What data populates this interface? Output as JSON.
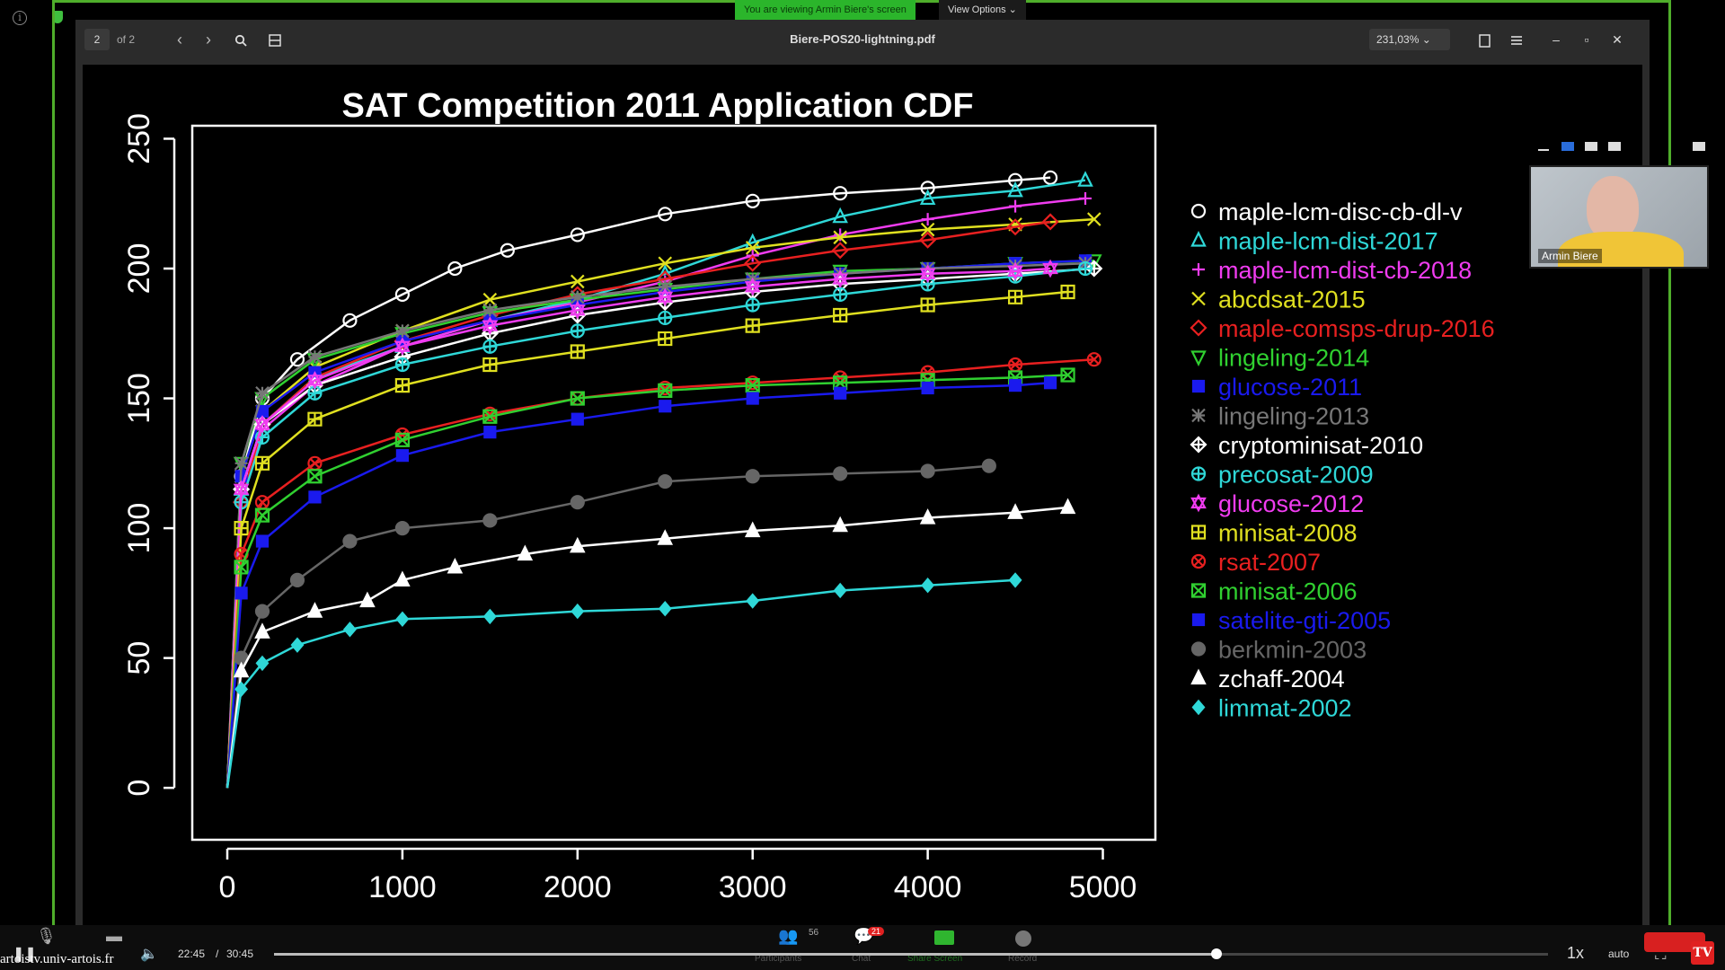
{
  "share": {
    "banner": "You are viewing Armin Biere's screen",
    "view_options": "View Options ⌄"
  },
  "viewer": {
    "page_current": "2",
    "page_total": "of 2",
    "document_title": "Biere-POS20-lightning.pdf",
    "zoom_level": "231,03% ⌄"
  },
  "webcam": {
    "participant_name": "Armin Biere"
  },
  "player": {
    "time_current": "22:45",
    "time_separator": "/",
    "time_total": "30:45",
    "speed": "1x",
    "quality": "auto",
    "site": "artoistv.univ-artois.fr",
    "participants_count": "56",
    "chat_badge": "21",
    "progress": 0.7398,
    "labels": {
      "participants": "Participants",
      "chat": "Chat",
      "share": "Share Screen",
      "record": "Record"
    }
  },
  "chart_data": {
    "type": "line",
    "title": "SAT Competition 2011 Application CDF",
    "xlabel": "",
    "ylabel": "",
    "xlim": [
      -200,
      5300
    ],
    "ylim": [
      -20,
      255
    ],
    "x_ticks": [
      0,
      1000,
      2000,
      3000,
      4000,
      5000
    ],
    "y_ticks": [
      0,
      50,
      100,
      150,
      200,
      250
    ],
    "grid": false,
    "legend_position": "right",
    "series": [
      {
        "name": "maple-lcm-disc-cb-dl-v",
        "color": "#ffffff",
        "marker": "circle-open",
        "points": [
          [
            0,
            0
          ],
          [
            80,
            120
          ],
          [
            200,
            150
          ],
          [
            400,
            165
          ],
          [
            700,
            180
          ],
          [
            1000,
            190
          ],
          [
            1300,
            200
          ],
          [
            1600,
            207
          ],
          [
            2000,
            213
          ],
          [
            2500,
            221
          ],
          [
            3000,
            226
          ],
          [
            3500,
            229
          ],
          [
            4000,
            231
          ],
          [
            4500,
            234
          ],
          [
            4700,
            235
          ]
        ]
      },
      {
        "name": "maple-lcm-dist-2017",
        "color": "#2fd8d8",
        "marker": "triangle-open",
        "points": [
          [
            0,
            0
          ],
          [
            80,
            115
          ],
          [
            200,
            140
          ],
          [
            500,
            158
          ],
          [
            1000,
            170
          ],
          [
            1500,
            180
          ],
          [
            2000,
            188
          ],
          [
            2500,
            198
          ],
          [
            3000,
            210
          ],
          [
            3500,
            220
          ],
          [
            4000,
            227
          ],
          [
            4500,
            230
          ],
          [
            4900,
            234
          ]
        ]
      },
      {
        "name": "maple-lcm-dist-cb-2018",
        "color": "#f03cf0",
        "marker": "plus",
        "points": [
          [
            0,
            0
          ],
          [
            80,
            110
          ],
          [
            200,
            138
          ],
          [
            500,
            155
          ],
          [
            1000,
            170
          ],
          [
            1500,
            180
          ],
          [
            2000,
            187
          ],
          [
            2500,
            195
          ],
          [
            3000,
            205
          ],
          [
            3500,
            213
          ],
          [
            4000,
            219
          ],
          [
            4500,
            224
          ],
          [
            4900,
            227
          ]
        ]
      },
      {
        "name": "abcdsat-2015",
        "color": "#e0e020",
        "marker": "cross",
        "points": [
          [
            0,
            0
          ],
          [
            80,
            120
          ],
          [
            200,
            145
          ],
          [
            500,
            162
          ],
          [
            1000,
            176
          ],
          [
            1500,
            188
          ],
          [
            2000,
            195
          ],
          [
            2500,
            202
          ],
          [
            3000,
            208
          ],
          [
            3500,
            212
          ],
          [
            4000,
            215
          ],
          [
            4500,
            217
          ],
          [
            4950,
            219
          ]
        ]
      },
      {
        "name": "maple-comsps-drup-2016",
        "color": "#e82020",
        "marker": "diamond-open",
        "points": [
          [
            0,
            0
          ],
          [
            80,
            110
          ],
          [
            200,
            140
          ],
          [
            500,
            158
          ],
          [
            1000,
            172
          ],
          [
            1500,
            182
          ],
          [
            2000,
            190
          ],
          [
            2500,
            196
          ],
          [
            3000,
            202
          ],
          [
            3500,
            207
          ],
          [
            4000,
            211
          ],
          [
            4500,
            216
          ],
          [
            4700,
            218
          ]
        ]
      },
      {
        "name": "lingeling-2014",
        "color": "#30d030",
        "marker": "triangle-down-open",
        "points": [
          [
            0,
            0
          ],
          [
            80,
            125
          ],
          [
            200,
            150
          ],
          [
            500,
            165
          ],
          [
            1000,
            175
          ],
          [
            1500,
            183
          ],
          [
            2000,
            188
          ],
          [
            2500,
            192
          ],
          [
            3000,
            196
          ],
          [
            3500,
            199
          ],
          [
            4000,
            200
          ],
          [
            4500,
            202
          ],
          [
            4950,
            203
          ]
        ]
      },
      {
        "name": "glucose-2011",
        "color": "#1a1aee",
        "marker": "square",
        "points": [
          [
            0,
            0
          ],
          [
            80,
            120
          ],
          [
            200,
            145
          ],
          [
            500,
            160
          ],
          [
            1000,
            172
          ],
          [
            1500,
            180
          ],
          [
            2000,
            186
          ],
          [
            2500,
            191
          ],
          [
            3000,
            195
          ],
          [
            3500,
            198
          ],
          [
            4000,
            200
          ],
          [
            4500,
            202
          ],
          [
            4900,
            203
          ]
        ]
      },
      {
        "name": "lingeling-2013",
        "color": "#777777",
        "marker": "asterisk",
        "points": [
          [
            0,
            0
          ],
          [
            80,
            125
          ],
          [
            200,
            152
          ],
          [
            500,
            166
          ],
          [
            1000,
            176
          ],
          [
            1500,
            184
          ],
          [
            2000,
            189
          ],
          [
            2500,
            193
          ],
          [
            3000,
            196
          ],
          [
            3500,
            198
          ],
          [
            4000,
            200
          ],
          [
            4500,
            201
          ],
          [
            4900,
            202
          ]
        ]
      },
      {
        "name": "cryptominisat-2010",
        "color": "#ffffff",
        "marker": "diamond-plus",
        "points": [
          [
            0,
            0
          ],
          [
            80,
            115
          ],
          [
            200,
            140
          ],
          [
            500,
            155
          ],
          [
            1000,
            166
          ],
          [
            1500,
            175
          ],
          [
            2000,
            182
          ],
          [
            2500,
            187
          ],
          [
            3000,
            191
          ],
          [
            3500,
            194
          ],
          [
            4000,
            196
          ],
          [
            4500,
            198
          ],
          [
            4950,
            200
          ]
        ]
      },
      {
        "name": "precosat-2009",
        "color": "#2fd8d8",
        "marker": "circle-plus",
        "points": [
          [
            0,
            0
          ],
          [
            80,
            110
          ],
          [
            200,
            135
          ],
          [
            500,
            152
          ],
          [
            1000,
            163
          ],
          [
            1500,
            170
          ],
          [
            2000,
            176
          ],
          [
            2500,
            181
          ],
          [
            3000,
            186
          ],
          [
            3500,
            190
          ],
          [
            4000,
            194
          ],
          [
            4500,
            197
          ],
          [
            4900,
            200
          ]
        ]
      },
      {
        "name": "glucose-2012",
        "color": "#f03cf0",
        "marker": "star-open",
        "points": [
          [
            0,
            0
          ],
          [
            80,
            115
          ],
          [
            200,
            140
          ],
          [
            500,
            157
          ],
          [
            1000,
            170
          ],
          [
            1500,
            178
          ],
          [
            2000,
            184
          ],
          [
            2500,
            189
          ],
          [
            3000,
            193
          ],
          [
            3500,
            196
          ],
          [
            4000,
            198
          ],
          [
            4500,
            199
          ],
          [
            4700,
            200
          ]
        ]
      },
      {
        "name": "minisat-2008",
        "color": "#e0e020",
        "marker": "square-plus",
        "points": [
          [
            0,
            0
          ],
          [
            80,
            100
          ],
          [
            200,
            125
          ],
          [
            500,
            142
          ],
          [
            1000,
            155
          ],
          [
            1500,
            163
          ],
          [
            2000,
            168
          ],
          [
            2500,
            173
          ],
          [
            3000,
            178
          ],
          [
            3500,
            182
          ],
          [
            4000,
            186
          ],
          [
            4500,
            189
          ],
          [
            4800,
            191
          ]
        ]
      },
      {
        "name": "rsat-2007",
        "color": "#e82020",
        "marker": "circle-cross",
        "points": [
          [
            0,
            0
          ],
          [
            80,
            90
          ],
          [
            200,
            110
          ],
          [
            500,
            125
          ],
          [
            1000,
            136
          ],
          [
            1500,
            144
          ],
          [
            2000,
            150
          ],
          [
            2500,
            154
          ],
          [
            3000,
            156
          ],
          [
            3500,
            158
          ],
          [
            4000,
            160
          ],
          [
            4500,
            163
          ],
          [
            4950,
            165
          ]
        ]
      },
      {
        "name": "minisat-2006",
        "color": "#30d030",
        "marker": "square-cross",
        "points": [
          [
            0,
            0
          ],
          [
            80,
            85
          ],
          [
            200,
            105
          ],
          [
            500,
            120
          ],
          [
            1000,
            134
          ],
          [
            1500,
            143
          ],
          [
            2000,
            150
          ],
          [
            2500,
            153
          ],
          [
            3000,
            155
          ],
          [
            3500,
            156
          ],
          [
            4000,
            157
          ],
          [
            4500,
            158
          ],
          [
            4800,
            159
          ]
        ]
      },
      {
        "name": "satelite-gti-2005",
        "color": "#1a1aee",
        "marker": "square",
        "points": [
          [
            0,
            0
          ],
          [
            80,
            75
          ],
          [
            200,
            95
          ],
          [
            500,
            112
          ],
          [
            1000,
            128
          ],
          [
            1500,
            137
          ],
          [
            2000,
            142
          ],
          [
            2500,
            147
          ],
          [
            3000,
            150
          ],
          [
            3500,
            152
          ],
          [
            4000,
            154
          ],
          [
            4500,
            155
          ],
          [
            4700,
            156
          ]
        ]
      },
      {
        "name": "berkmin-2003",
        "color": "#666666",
        "marker": "circle",
        "points": [
          [
            0,
            0
          ],
          [
            80,
            50
          ],
          [
            200,
            68
          ],
          [
            400,
            80
          ],
          [
            700,
            95
          ],
          [
            1000,
            100
          ],
          [
            1500,
            103
          ],
          [
            2000,
            110
          ],
          [
            2500,
            118
          ],
          [
            3000,
            120
          ],
          [
            3500,
            121
          ],
          [
            4000,
            122
          ],
          [
            4350,
            124
          ]
        ]
      },
      {
        "name": "zchaff-2004",
        "color": "#ffffff",
        "marker": "triangle",
        "points": [
          [
            0,
            0
          ],
          [
            80,
            45
          ],
          [
            200,
            60
          ],
          [
            500,
            68
          ],
          [
            800,
            72
          ],
          [
            1000,
            80
          ],
          [
            1300,
            85
          ],
          [
            1700,
            90
          ],
          [
            2000,
            93
          ],
          [
            2500,
            96
          ],
          [
            3000,
            99
          ],
          [
            3500,
            101
          ],
          [
            4000,
            104
          ],
          [
            4500,
            106
          ],
          [
            4800,
            108
          ]
        ]
      },
      {
        "name": "limmat-2002",
        "color": "#2fd8d8",
        "marker": "diamond",
        "points": [
          [
            0,
            0
          ],
          [
            80,
            38
          ],
          [
            200,
            48
          ],
          [
            400,
            55
          ],
          [
            700,
            61
          ],
          [
            1000,
            65
          ],
          [
            1500,
            66
          ],
          [
            2000,
            68
          ],
          [
            2500,
            69
          ],
          [
            3000,
            72
          ],
          [
            3500,
            76
          ],
          [
            4000,
            78
          ],
          [
            4500,
            80
          ]
        ]
      }
    ]
  }
}
